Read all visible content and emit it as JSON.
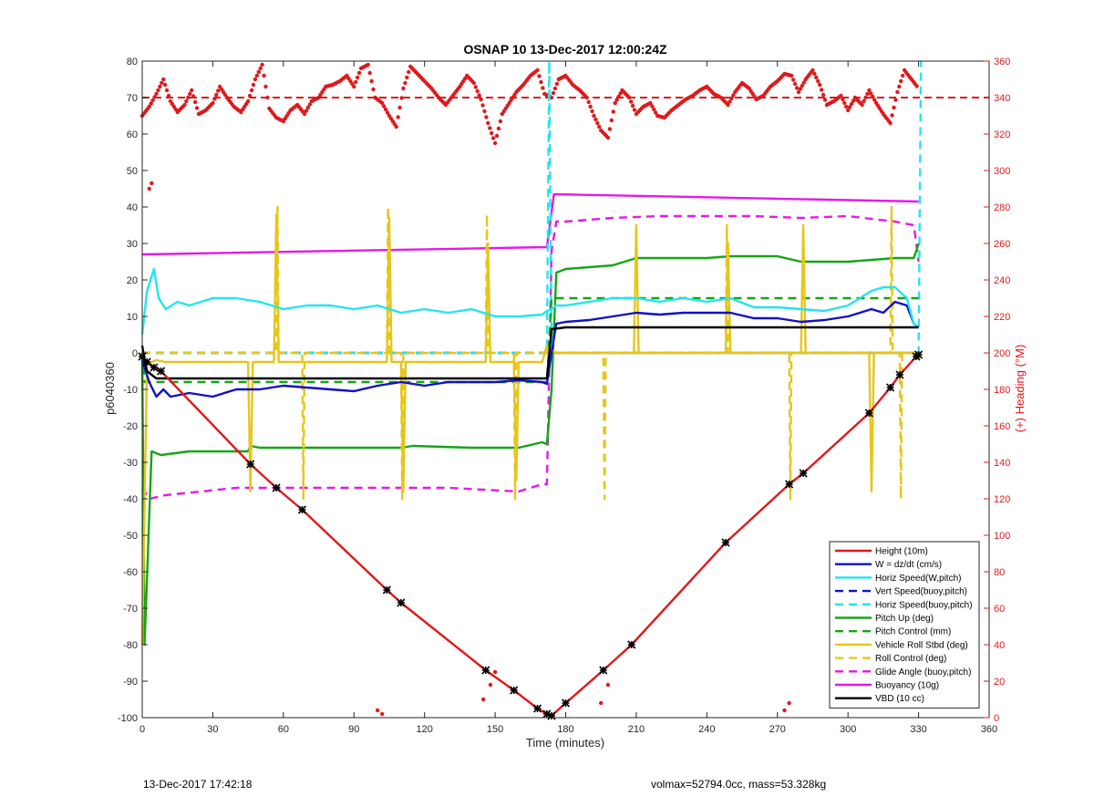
{
  "chart_data": {
    "type": "line",
    "title": "OSNAP 10 13-Dec-2017 12:00:24Z",
    "xlabel": "Time (minutes)",
    "ylabel": "p6040360",
    "y2label": "(+) Heading (°M)",
    "xlim": [
      0,
      360
    ],
    "ylim": [
      -100,
      80
    ],
    "y2lim": [
      0,
      360
    ],
    "xticks": [
      0,
      30,
      60,
      90,
      120,
      150,
      180,
      210,
      240,
      270,
      300,
      330,
      360
    ],
    "yticks": [
      -100,
      -90,
      -80,
      -70,
      -60,
      -50,
      -40,
      -30,
      -20,
      -10,
      0,
      10,
      20,
      30,
      40,
      50,
      60,
      70,
      80
    ],
    "y2ticks": [
      0,
      20,
      40,
      60,
      80,
      100,
      120,
      140,
      160,
      180,
      200,
      220,
      240,
      260,
      280,
      300,
      320,
      340,
      360
    ],
    "grid": false,
    "legend_position": "bottom-right",
    "colors": {
      "red": "#e0191b",
      "blue": "#1010c8",
      "cyan": "#22e5ef",
      "green": "#16a516",
      "yellow": "#e6c619",
      "magenta": "#e619e6",
      "black": "#000000",
      "heading": "#e0191b"
    },
    "series": [
      {
        "name": "Height (10m)",
        "color": "#e0191b",
        "style": "solid",
        "markers": true,
        "x": [
          0,
          2,
          5,
          8,
          46,
          57,
          68,
          104,
          110,
          146,
          158,
          168,
          172,
          174,
          180,
          196,
          208,
          248,
          275,
          281,
          309,
          318,
          322,
          329,
          330
        ],
        "y": [
          -1,
          -2.5,
          -4,
          -5,
          -30.5,
          -37,
          -43,
          -65,
          -68.5,
          -87,
          -92.5,
          -97.5,
          -99,
          -99.5,
          -96,
          -87,
          -80,
          -52,
          -36,
          -33,
          -16.5,
          -9.5,
          -6,
          -1,
          -0.5
        ]
      },
      {
        "name": "W = dz/dt (cm/s)",
        "color": "#1010c8",
        "style": "solid",
        "x": [
          0,
          3,
          6,
          9,
          12,
          20,
          30,
          40,
          50,
          60,
          70,
          80,
          90,
          100,
          110,
          120,
          130,
          140,
          150,
          160,
          170,
          172,
          174,
          176,
          180,
          190,
          200,
          210,
          220,
          230,
          240,
          250,
          260,
          270,
          280,
          290,
          300,
          310,
          315,
          320,
          325,
          328,
          330
        ],
        "y": [
          -2,
          -8,
          -12,
          -10,
          -12,
          -11,
          -12,
          -10,
          -10,
          -9,
          -9.5,
          -10,
          -10.5,
          -9,
          -8,
          -9,
          -8,
          -8,
          -8,
          -7.5,
          -8,
          -8.5,
          0,
          8,
          8.5,
          9,
          10,
          11,
          10.5,
          11,
          11,
          11,
          9.5,
          9.5,
          8.5,
          9,
          10,
          12,
          11,
          14,
          13,
          8,
          7
        ]
      },
      {
        "name": "Horiz Speed(W,pitch)",
        "color": "#22e5ef",
        "style": "solid",
        "x": [
          0,
          2,
          5,
          7,
          10,
          15,
          20,
          30,
          40,
          50,
          60,
          70,
          80,
          90,
          100,
          110,
          120,
          130,
          140,
          150,
          160,
          170,
          172,
          174,
          176,
          180,
          190,
          200,
          210,
          220,
          230,
          240,
          250,
          260,
          270,
          280,
          290,
          300,
          310,
          315,
          320,
          325,
          328,
          330
        ],
        "y": [
          5,
          17,
          23,
          15,
          12,
          14,
          13,
          15,
          15,
          14,
          12,
          13,
          13,
          12,
          13,
          11,
          12,
          11,
          12,
          10,
          10,
          10.5,
          11.5,
          12,
          13,
          13,
          14,
          15,
          15,
          14,
          15,
          14,
          15,
          12.5,
          12.5,
          12,
          11.5,
          13,
          17,
          18,
          18,
          15,
          8,
          7
        ]
      },
      {
        "name": "Vert Speed(buoy,pitch)",
        "color": "#1010c8",
        "style": "dashed",
        "x": [
          0,
          330
        ],
        "y": [
          0,
          0
        ]
      },
      {
        "name": "Horiz Speed(buoy,pitch)",
        "color": "#22e5ef",
        "style": "dashed",
        "x": [
          0,
          172,
          173,
          174,
          330,
          331
        ],
        "y": [
          0,
          0,
          80,
          0,
          0,
          80
        ]
      },
      {
        "name": "Pitch Up (deg)",
        "color": "#16a516",
        "style": "solid",
        "x": [
          0,
          1,
          4,
          8,
          20,
          45,
          46,
          50,
          70,
          110,
          115,
          140,
          160,
          170,
          172,
          174,
          176,
          180,
          200,
          210,
          240,
          250,
          270,
          280,
          300,
          320,
          328,
          330
        ],
        "y": [
          0,
          -80,
          -27,
          -28,
          -27,
          -27,
          -25.5,
          -26,
          -26,
          -26,
          -25.5,
          -26,
          -26,
          -24.5,
          -25,
          -10,
          22,
          23,
          24,
          26,
          26,
          26.5,
          26.5,
          25,
          25,
          26,
          26,
          30
        ]
      },
      {
        "name": "Pitch Control (mm)",
        "color": "#16a516",
        "style": "dashed",
        "x": [
          0,
          1,
          172,
          174,
          330
        ],
        "y": [
          0,
          -8,
          -8,
          15,
          15
        ]
      },
      {
        "name": "Vehicle Roll Stbd (deg)",
        "color": "#e6c619",
        "style": "solid",
        "x": [
          0,
          2,
          6,
          10,
          40,
          45,
          46,
          47,
          56,
          57,
          58,
          70,
          104,
          105,
          106,
          110,
          111,
          112,
          140,
          146,
          147,
          148,
          158,
          159,
          160,
          170,
          172,
          173,
          174,
          176,
          180,
          200,
          209,
          210,
          211,
          248,
          249,
          250,
          280,
          281,
          282,
          309,
          310,
          311,
          320,
          330
        ],
        "y": [
          -80,
          -3,
          -2,
          -2.5,
          -2.5,
          -2.5,
          -38,
          -2.5,
          -2.5,
          38,
          -2.5,
          -2.5,
          -2.5,
          37,
          -2.5,
          -2.5,
          -38,
          -2.5,
          -2.5,
          -2.5,
          30,
          -2.5,
          -2.5,
          -35,
          -2.5,
          -2.5,
          2,
          -2.5,
          1,
          0,
          0,
          0,
          0,
          35,
          0,
          0,
          30,
          0,
          0,
          35,
          0,
          0,
          -38,
          0,
          0,
          0
        ]
      },
      {
        "name": "Roll Control (deg)",
        "color": "#e6c619",
        "style": "dashed",
        "x": [
          0,
          57,
          57.5,
          58,
          68,
          68.5,
          69,
          104,
          104.5,
          105,
          110,
          110.5,
          111,
          146,
          146.5,
          147,
          158,
          158.5,
          159,
          180,
          196,
          196.5,
          197,
          248,
          248.5,
          249,
          275,
          275.5,
          276,
          318,
          318.5,
          319,
          322,
          322.5,
          323,
          330
        ],
        "y": [
          0,
          0,
          40,
          0,
          0,
          -40,
          0,
          0,
          40,
          0,
          0,
          -40,
          0,
          0,
          38,
          0,
          0,
          -40,
          0,
          0,
          0,
          -40,
          0,
          0,
          35,
          0,
          0,
          -40,
          0,
          0,
          40,
          0,
          0,
          -40,
          0,
          0
        ]
      },
      {
        "name": "Glide Angle (buoy,pitch)",
        "color": "#e619e6",
        "style": "dashed",
        "x": [
          0,
          3,
          10,
          40,
          70,
          100,
          130,
          160,
          170,
          172,
          174,
          176,
          180,
          200,
          220,
          240,
          260,
          280,
          300,
          320,
          328,
          330
        ],
        "y": [
          -37,
          -40,
          -39,
          -37,
          -37,
          -37,
          -37,
          -38,
          -36,
          -36,
          28,
          36,
          36,
          37,
          37.5,
          37.5,
          37.5,
          37,
          37.5,
          36,
          35,
          25
        ]
      },
      {
        "name": "Buoyancy (10g)",
        "color": "#e619e6",
        "style": "solid",
        "x": [
          0,
          172,
          175,
          330
        ],
        "y": [
          27,
          29,
          43.5,
          41.5
        ]
      },
      {
        "name": "VBD (10 cc)",
        "color": "#000000",
        "style": "solid",
        "x": [
          0,
          1,
          2,
          4,
          6,
          172,
          174,
          180,
          330
        ],
        "y": [
          2,
          -2,
          -5,
          -6,
          -7,
          -7,
          6.5,
          7,
          7
        ]
      }
    ],
    "heading_series": {
      "name": "Heading",
      "axis": "right",
      "color": "#e0191b",
      "reference_value": 340,
      "reference_style": "dashed",
      "x": [
        0,
        3,
        6,
        9,
        12,
        15,
        18,
        21,
        24,
        27,
        30,
        33,
        36,
        39,
        42,
        45,
        48,
        51,
        54,
        57,
        60,
        63,
        66,
        69,
        72,
        75,
        78,
        81,
        84,
        87,
        90,
        93,
        96,
        99,
        102,
        105,
        108,
        111,
        114,
        117,
        120,
        123,
        126,
        129,
        132,
        135,
        138,
        141,
        144,
        147,
        150,
        153,
        156,
        159,
        162,
        165,
        168,
        171,
        174,
        177,
        180,
        183,
        186,
        189,
        192,
        195,
        198,
        201,
        204,
        207,
        210,
        213,
        216,
        219,
        222,
        225,
        228,
        231,
        234,
        237,
        240,
        243,
        246,
        249,
        252,
        255,
        258,
        261,
        264,
        267,
        270,
        273,
        276,
        279,
        282,
        285,
        288,
        291,
        294,
        297,
        300,
        303,
        306,
        309,
        312,
        315,
        318,
        321,
        324,
        327,
        330
      ],
      "y": [
        330,
        335,
        342,
        350,
        338,
        332,
        336,
        344,
        331,
        333,
        337,
        346,
        340,
        335,
        332,
        338,
        350,
        358,
        334,
        329,
        327,
        333,
        336,
        331,
        338,
        340,
        346,
        347,
        349,
        352,
        346,
        356,
        358,
        340,
        337,
        330,
        324,
        345,
        357,
        353,
        349,
        345,
        340,
        336,
        341,
        346,
        352,
        348,
        339,
        326,
        315,
        331,
        337,
        343,
        347,
        352,
        355,
        342,
        340,
        350,
        352,
        347,
        344,
        340,
        330,
        322,
        318,
        337,
        344,
        340,
        331,
        335,
        337,
        330,
        329,
        333,
        336,
        339,
        341,
        344,
        346,
        342,
        340,
        336,
        343,
        348,
        345,
        339,
        341,
        346,
        349,
        353,
        352,
        343,
        350,
        355,
        347,
        336,
        338,
        341,
        333,
        340,
        336,
        344,
        337,
        331,
        326,
        343,
        355,
        350,
        345
      ]
    },
    "heading_outliers": {
      "x": [
        3,
        4,
        100,
        102,
        145,
        148,
        150,
        195,
        198,
        273,
        275
      ],
      "y": [
        290,
        293,
        4,
        2,
        10,
        18,
        25,
        8,
        18,
        4,
        8
      ]
    }
  },
  "footer": {
    "timestamp": "13-Dec-2017 17:42:18",
    "info": "volmax=52794.0cc, mass=53.328kg"
  }
}
